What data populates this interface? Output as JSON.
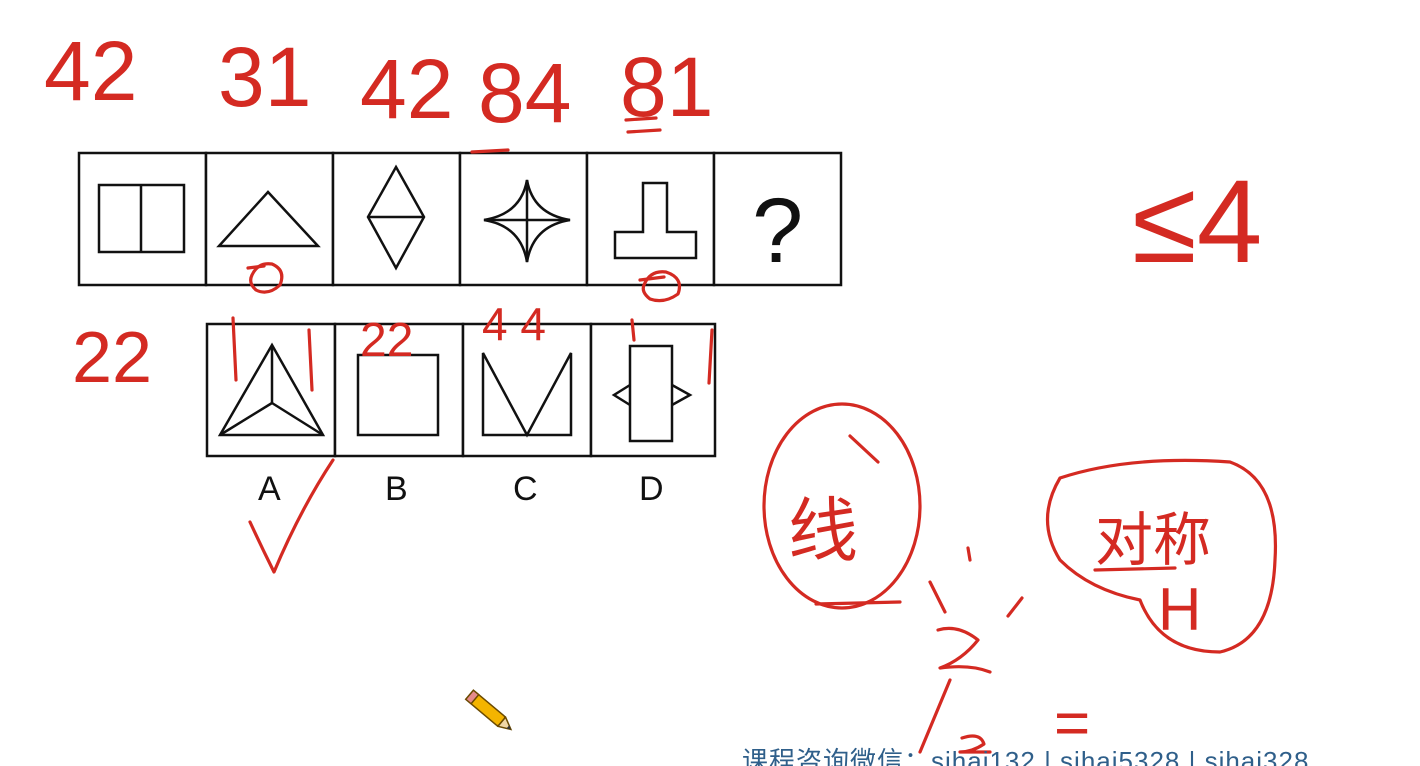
{
  "question": {
    "stem_cells": [
      "two-squares-split",
      "triangle",
      "diamond-split",
      "four-point-star",
      "t-shape",
      "question-mark"
    ],
    "question_mark": "?",
    "options": [
      {
        "label": "A",
        "figure": "triangle-with-center-lines"
      },
      {
        "label": "B",
        "figure": "square"
      },
      {
        "label": "C",
        "figure": "m-shape"
      },
      {
        "label": "D",
        "figure": "rectangle-with-side-triangles"
      }
    ]
  },
  "annotations": {
    "top_counts": [
      "42",
      "31",
      "42",
      "84",
      "81"
    ],
    "left_count": "22",
    "option_counts": [
      "22",
      "4 4"
    ],
    "side_note": "≤4",
    "bubble_left": "线",
    "bubble_right": "对称",
    "bubble_right_sub": "H",
    "equals_mark": "="
  },
  "footer": {
    "text": "课程咨询微信：sihai132 | sihai5328 | sihai328"
  },
  "colors": {
    "ink": "#d42a22",
    "figure": "#111111",
    "footer_text": "#2f5f8a"
  }
}
